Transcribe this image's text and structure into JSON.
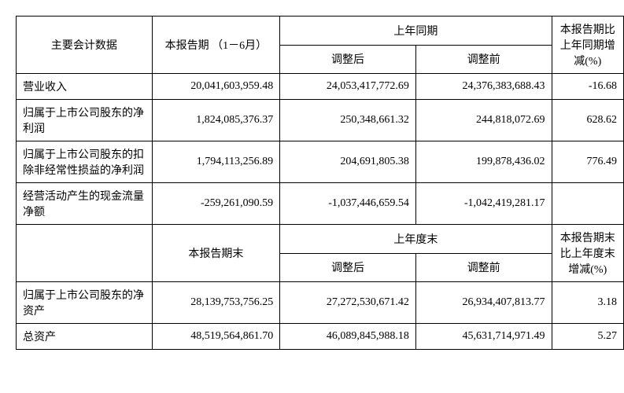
{
  "table1": {
    "header": {
      "main_label": "主要会计数据",
      "current_period": "本报告期\n（1－6月）",
      "prior_period_group": "上年同期",
      "adjusted_after": "调整后",
      "adjusted_before": "调整前",
      "change_pct": "本报告期比上年同期增减(%)"
    },
    "rows": [
      {
        "label": "营业收入",
        "current": "20,041,603,959.48",
        "adj_after": "24,053,417,772.69",
        "adj_before": "24,376,383,688.43",
        "pct": "-16.68"
      },
      {
        "label": "归属于上市公司股东的净利润",
        "current": "1,824,085,376.37",
        "adj_after": "250,348,661.32",
        "adj_before": "244,818,072.69",
        "pct": "628.62"
      },
      {
        "label": "归属于上市公司股东的扣除非经常性损益的净利润",
        "current": "1,794,113,256.89",
        "adj_after": "204,691,805.38",
        "adj_before": "199,878,436.02",
        "pct": "776.49"
      },
      {
        "label": "经营活动产生的现金流量净额",
        "current": "-259,261,090.59",
        "adj_after": "-1,037,446,659.54",
        "adj_before": "-1,042,419,281.17",
        "pct": ""
      }
    ]
  },
  "table2": {
    "header": {
      "current_end": "本报告期末",
      "prior_end_group": "上年度末",
      "adjusted_after": "调整后",
      "adjusted_before": "调整前",
      "change_pct": "本报告期末比上年度末增减(%)"
    },
    "rows": [
      {
        "label": "归属于上市公司股东的净资产",
        "current": "28,139,753,756.25",
        "adj_after": "27,272,530,671.42",
        "adj_before": "26,934,407,813.77",
        "pct": "3.18"
      },
      {
        "label": "总资产",
        "current": "48,519,564,861.70",
        "adj_after": "46,089,845,988.18",
        "adj_before": "45,631,714,971.49",
        "pct": "5.27"
      }
    ]
  },
  "style": {
    "border_color": "#000000",
    "background_color": "#ffffff",
    "text_color": "#000000",
    "font_size_pt": 14
  }
}
